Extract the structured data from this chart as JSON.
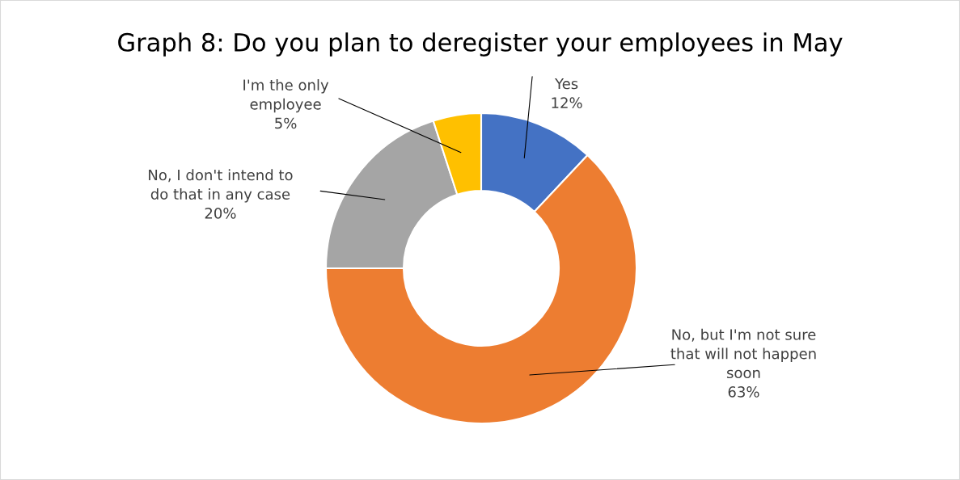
{
  "chart_data": {
    "type": "donut",
    "title": "Graph 8: Do you plan to deregister your employees in May",
    "categories": [
      "Yes",
      "No, but I'm not sure\nthat will not happen\nsoon",
      "No, I don't intend to\ndo that in any case",
      "I'm the only\nemployee"
    ],
    "values": [
      12,
      63,
      20,
      5
    ],
    "colors": [
      "#4472c4",
      "#ed7d31",
      "#a5a5a5",
      "#ffc000"
    ],
    "value_labels": [
      "12%",
      "63%",
      "20%",
      "5%"
    ],
    "legend": false
  }
}
